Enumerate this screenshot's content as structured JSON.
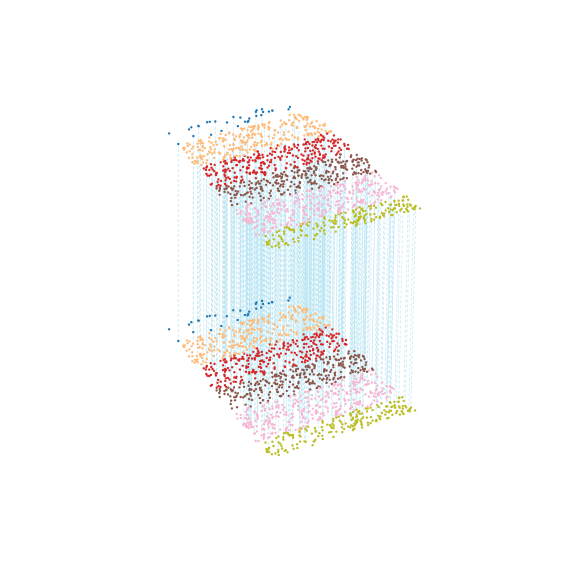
{
  "chart_data": {
    "type": "scatter",
    "title": "",
    "xlabel": "",
    "ylabel": "",
    "zlabel": "",
    "grid": false,
    "legend": "none",
    "projection": "3d",
    "point_count_per_sheet": 1500,
    "sheets": [
      {
        "name": "",
        "z": 1.0
      },
      {
        "name": "",
        "z": 0.0
      }
    ],
    "connectors": {
      "color": "#b5e3f2",
      "style": "dashed"
    },
    "bands": [
      {
        "name": "",
        "color": "#1f77b4",
        "u_range": [
          0.0,
          0.1
        ]
      },
      {
        "name": "",
        "color": "#ffbb78",
        "u_range": [
          0.1,
          0.3
        ]
      },
      {
        "name": "",
        "color": "#d62728",
        "u_range": [
          0.3,
          0.48
        ]
      },
      {
        "name": "",
        "color": "#8c564b",
        "u_range": [
          0.48,
          0.66
        ]
      },
      {
        "name": "",
        "color": "#f7b6d2",
        "u_range": [
          0.66,
          0.88
        ]
      },
      {
        "name": "",
        "color": "#bcbd22",
        "u_range": [
          0.88,
          1.0
        ]
      }
    ]
  }
}
